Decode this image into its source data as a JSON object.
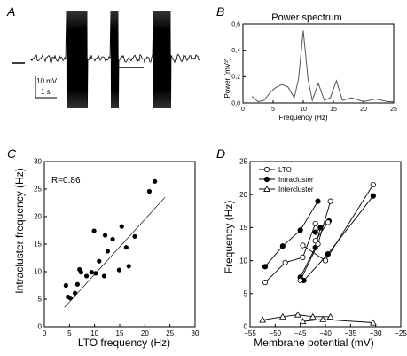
{
  "panels": {
    "A": "A",
    "B": "B",
    "C": "C",
    "D": "D"
  },
  "panel_a": {
    "scale_mv": "10 mV",
    "scale_s": "1 s"
  },
  "chart_data": [
    {
      "id": "B",
      "type": "line",
      "title": "Power spectrum",
      "xlabel": "Frequency (Hz)",
      "ylabel": "Power (mV²)",
      "xlim": [
        0,
        25
      ],
      "ylim": [
        0,
        0.6
      ],
      "xticks": [
        0,
        5,
        10,
        15,
        20,
        25
      ],
      "yticks": [
        0.0,
        0.2,
        0.4,
        0.6
      ],
      "ytick_labels": [
        "0,0",
        "0,2",
        "0,4",
        "0,6"
      ],
      "grid": false,
      "x": [
        1.5,
        2.5,
        3.5,
        4.5,
        5.5,
        6.5,
        7.5,
        8.5,
        9.2,
        10,
        10.8,
        11.5,
        12.5,
        13.5,
        14.5,
        15.5,
        16.5,
        18,
        20,
        22,
        24,
        25
      ],
      "y": [
        0.05,
        0.01,
        0.02,
        0.08,
        0.12,
        0.14,
        0.12,
        0.04,
        0.18,
        0.55,
        0.18,
        0.02,
        0.15,
        0.02,
        0.04,
        0.17,
        0.02,
        0.04,
        0.01,
        0.03,
        0.01,
        0.01
      ]
    },
    {
      "id": "C",
      "type": "scatter",
      "xlabel": "LTO frequency (Hz)",
      "ylabel": "Intracluster frequency (Hz)",
      "xlim": [
        0,
        30
      ],
      "ylim": [
        0,
        30
      ],
      "xticks": [
        0,
        5,
        10,
        15,
        20,
        25,
        30
      ],
      "yticks": [
        0,
        5,
        10,
        15,
        20,
        25,
        30
      ],
      "annotation": "R=0.86",
      "grid": false,
      "points": [
        [
          4.3,
          7.5
        ],
        [
          4.7,
          5.4
        ],
        [
          5.2,
          5.2
        ],
        [
          6.1,
          6.1
        ],
        [
          6.6,
          7.7
        ],
        [
          7.0,
          10.4
        ],
        [
          7.3,
          9.9
        ],
        [
          8.4,
          9.2
        ],
        [
          9.4,
          9.9
        ],
        [
          9.9,
          17.4
        ],
        [
          10.2,
          9.7
        ],
        [
          10.9,
          11.9
        ],
        [
          11.9,
          9.2
        ],
        [
          12.1,
          16.6
        ],
        [
          12.6,
          13.7
        ],
        [
          13.6,
          15.9
        ],
        [
          14.9,
          10.3
        ],
        [
          15.4,
          18.2
        ],
        [
          16.3,
          14.4
        ],
        [
          16.8,
          11.0
        ],
        [
          18.0,
          16.4
        ],
        [
          20.9,
          24.6
        ],
        [
          22.0,
          26.4
        ]
      ],
      "fit_line": [
        [
          4.0,
          3.5
        ],
        [
          24.0,
          23.5
        ]
      ]
    },
    {
      "id": "D",
      "type": "line",
      "xlabel": "Membrane potential (mV)",
      "ylabel": "Frequency (Hz)",
      "xlim": [
        -55,
        -25
      ],
      "ylim": [
        0,
        25
      ],
      "xticks": [
        -55,
        -50,
        -45,
        -40,
        -35,
        -30,
        -25
      ],
      "yticks": [
        0,
        5,
        10,
        15,
        20,
        25
      ],
      "grid": false,
      "legend_position": "top-left",
      "series": [
        {
          "name": "LTO",
          "marker": "open-circle",
          "lines": [
            [
              [
                -52,
                6.7
              ],
              [
                -48,
                9.7
              ],
              [
                -44.5,
                10.5
              ],
              [
                -42,
                15.6
              ]
            ],
            [
              [
                -45,
                7.0
              ],
              [
                -41.5,
                12.5
              ],
              [
                -39,
                19.0
              ]
            ],
            [
              [
                -44.5,
                12.3
              ],
              [
                -40,
                10.0
              ],
              [
                -30.5,
                21.5
              ]
            ],
            [
              [
                -42,
                13.0
              ],
              [
                -39.5,
                15.8
              ]
            ]
          ]
        },
        {
          "name": "Intracluster",
          "marker": "filled-circle",
          "lines": [
            [
              [
                -52,
                9.1
              ],
              [
                -48.5,
                12.2
              ],
              [
                -45,
                14.6
              ],
              [
                -41.5,
                19.0
              ]
            ],
            [
              [
                -45,
                7.5
              ],
              [
                -42,
                12.0
              ],
              [
                -41,
                15.0
              ]
            ],
            [
              [
                -44.3,
                7.0
              ],
              [
                -39.5,
                11.0
              ],
              [
                -30.5,
                19.8
              ]
            ],
            [
              [
                -42,
                14.3
              ],
              [
                -39.3,
                16.0
              ]
            ]
          ]
        },
        {
          "name": "Intercluster",
          "marker": "open-triangle",
          "lines": [
            [
              [
                -52.5,
                1.0
              ],
              [
                -48.5,
                1.5
              ],
              [
                -45.5,
                1.8
              ],
              [
                -42.5,
                1.5
              ],
              [
                -39,
                1.5
              ]
            ],
            [
              [
                -44.5,
                0.8
              ],
              [
                -40.5,
                1.1
              ],
              [
                -30.5,
                0.6
              ]
            ]
          ]
        }
      ]
    }
  ]
}
